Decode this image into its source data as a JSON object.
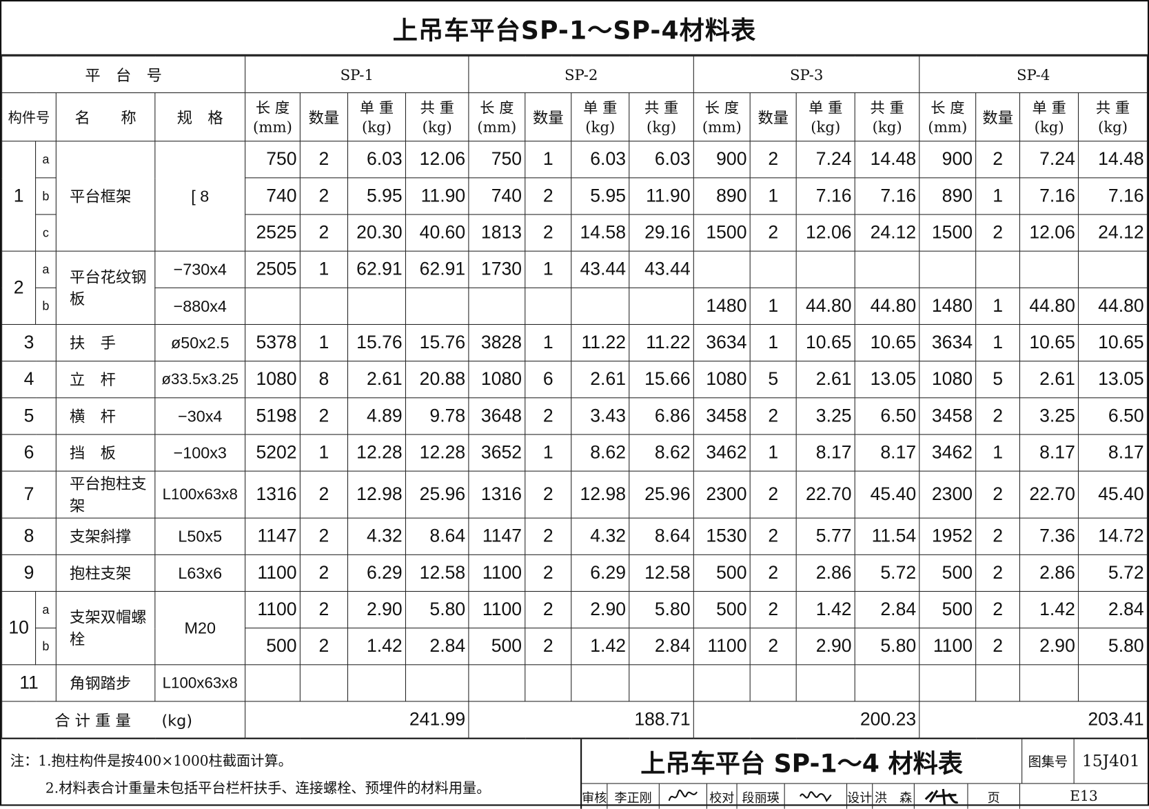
{
  "title": "上吊车平台SP-1～SP-4材料表",
  "header": {
    "platform_no": "平　台　号",
    "platforms": [
      "SP-1",
      "SP-2",
      "SP-3",
      "SP-4"
    ],
    "part_no": "构件号",
    "name": "名　　称",
    "spec": "规　格",
    "length": "长 度",
    "length_unit": "(mm)",
    "qty": "数量",
    "unit_weight": "单 重",
    "total_weight": "共 重",
    "weight_unit": "(kg)"
  },
  "rows": [
    {
      "no": "1",
      "sub": "a",
      "name": "平台框架",
      "spec": "[ 8",
      "sp": [
        [
          "750",
          "2",
          "6.03",
          "12.06"
        ],
        [
          "750",
          "1",
          "6.03",
          "6.03"
        ],
        [
          "900",
          "2",
          "7.24",
          "14.48"
        ],
        [
          "900",
          "2",
          "7.24",
          "14.48"
        ]
      ]
    },
    {
      "no": "",
      "sub": "b",
      "name": "",
      "spec": "",
      "sp": [
        [
          "740",
          "2",
          "5.95",
          "11.90"
        ],
        [
          "740",
          "2",
          "5.95",
          "11.90"
        ],
        [
          "890",
          "1",
          "7.16",
          "7.16"
        ],
        [
          "890",
          "1",
          "7.16",
          "7.16"
        ]
      ]
    },
    {
      "no": "",
      "sub": "c",
      "name": "",
      "spec": "",
      "sp": [
        [
          "2525",
          "2",
          "20.30",
          "40.60"
        ],
        [
          "1813",
          "2",
          "14.58",
          "29.16"
        ],
        [
          "1500",
          "2",
          "12.06",
          "24.12"
        ],
        [
          "1500",
          "2",
          "12.06",
          "24.12"
        ]
      ]
    },
    {
      "no": "2",
      "sub": "a",
      "name": "平台花纹钢板",
      "spec": "−730x4",
      "sp": [
        [
          "2505",
          "1",
          "62.91",
          "62.91"
        ],
        [
          "1730",
          "1",
          "43.44",
          "43.44"
        ],
        [
          "",
          "",
          "",
          ""
        ],
        [
          "",
          "",
          "",
          ""
        ]
      ]
    },
    {
      "no": "",
      "sub": "b",
      "name": "",
      "spec": "−880x4",
      "sp": [
        [
          "",
          "",
          "",
          ""
        ],
        [
          "",
          "",
          "",
          ""
        ],
        [
          "1480",
          "1",
          "44.80",
          "44.80"
        ],
        [
          "1480",
          "1",
          "44.80",
          "44.80"
        ]
      ]
    },
    {
      "no": "3",
      "sub": "",
      "name": "扶　手",
      "spec": "ø50x2.5",
      "sp": [
        [
          "5378",
          "1",
          "15.76",
          "15.76"
        ],
        [
          "3828",
          "1",
          "11.22",
          "11.22"
        ],
        [
          "3634",
          "1",
          "10.65",
          "10.65"
        ],
        [
          "3634",
          "1",
          "10.65",
          "10.65"
        ]
      ]
    },
    {
      "no": "4",
      "sub": "",
      "name": "立　杆",
      "spec": "ø33.5x3.25",
      "sp": [
        [
          "1080",
          "8",
          "2.61",
          "20.88"
        ],
        [
          "1080",
          "6",
          "2.61",
          "15.66"
        ],
        [
          "1080",
          "5",
          "2.61",
          "13.05"
        ],
        [
          "1080",
          "5",
          "2.61",
          "13.05"
        ]
      ]
    },
    {
      "no": "5",
      "sub": "",
      "name": "横　杆",
      "spec": "−30x4",
      "sp": [
        [
          "5198",
          "2",
          "4.89",
          "9.78"
        ],
        [
          "3648",
          "2",
          "3.43",
          "6.86"
        ],
        [
          "3458",
          "2",
          "3.25",
          "6.50"
        ],
        [
          "3458",
          "2",
          "3.25",
          "6.50"
        ]
      ]
    },
    {
      "no": "6",
      "sub": "",
      "name": "挡　板",
      "spec": "−100x3",
      "sp": [
        [
          "5202",
          "1",
          "12.28",
          "12.28"
        ],
        [
          "3652",
          "1",
          "8.62",
          "8.62"
        ],
        [
          "3462",
          "1",
          "8.17",
          "8.17"
        ],
        [
          "3462",
          "1",
          "8.17",
          "8.17"
        ]
      ]
    },
    {
      "no": "7",
      "sub": "",
      "name": "平台抱柱支架",
      "spec": "L100x63x8",
      "sp": [
        [
          "1316",
          "2",
          "12.98",
          "25.96"
        ],
        [
          "1316",
          "2",
          "12.98",
          "25.96"
        ],
        [
          "2300",
          "2",
          "22.70",
          "45.40"
        ],
        [
          "2300",
          "2",
          "22.70",
          "45.40"
        ]
      ]
    },
    {
      "no": "8",
      "sub": "",
      "name": "支架斜撑",
      "spec": "L50x5",
      "sp": [
        [
          "1147",
          "2",
          "4.32",
          "8.64"
        ],
        [
          "1147",
          "2",
          "4.32",
          "8.64"
        ],
        [
          "1530",
          "2",
          "5.77",
          "11.54"
        ],
        [
          "1952",
          "2",
          "7.36",
          "14.72"
        ]
      ]
    },
    {
      "no": "9",
      "sub": "",
      "name": "抱柱支架",
      "spec": "L63x6",
      "sp": [
        [
          "1100",
          "2",
          "6.29",
          "12.58"
        ],
        [
          "1100",
          "2",
          "6.29",
          "12.58"
        ],
        [
          "500",
          "2",
          "2.86",
          "5.72"
        ],
        [
          "500",
          "2",
          "2.86",
          "5.72"
        ]
      ]
    },
    {
      "no": "10",
      "sub": "a",
      "name": "支架双帽螺栓",
      "spec": "M20",
      "sp": [
        [
          "1100",
          "2",
          "2.90",
          "5.80"
        ],
        [
          "1100",
          "2",
          "2.90",
          "5.80"
        ],
        [
          "500",
          "2",
          "1.42",
          "2.84"
        ],
        [
          "500",
          "2",
          "1.42",
          "2.84"
        ]
      ]
    },
    {
      "no": "",
      "sub": "b",
      "name": "",
      "spec": "",
      "sp": [
        [
          "500",
          "2",
          "1.42",
          "2.84"
        ],
        [
          "500",
          "2",
          "1.42",
          "2.84"
        ],
        [
          "1100",
          "2",
          "2.90",
          "5.80"
        ],
        [
          "1100",
          "2",
          "2.90",
          "5.80"
        ]
      ]
    },
    {
      "no": "11",
      "sub": "",
      "name": "角钢踏步",
      "spec": "L100x63x8",
      "sp": [
        [
          "",
          "",
          "",
          ""
        ],
        [
          "",
          "",
          "",
          ""
        ],
        [
          "",
          "",
          "",
          ""
        ],
        [
          "",
          "",
          "",
          ""
        ]
      ]
    }
  ],
  "total": {
    "label": "合 计 重 量　　(kg)",
    "values": [
      "241.99",
      "188.71",
      "200.23",
      "203.41"
    ]
  },
  "notes": [
    "注：1.抱柱构件是按400×1000柱截面计算。",
    "2.材料表合计重量未包括平台栏杆扶手、连接螺栓、预埋件的材料用量。"
  ],
  "title_block": {
    "title": "上吊车平台 SP-1～4 材料表",
    "atlas_label": "图集号",
    "atlas_no": "15J401",
    "page_label": "页",
    "page_no": "E13",
    "review_label": "审核",
    "reviewer": "李正刚",
    "check_label": "校对",
    "checker": "段丽瑛",
    "design_label": "设计",
    "designer": "洪　森",
    "signatures": [
      "李正刚",
      "段丽瑛",
      "洪森"
    ]
  }
}
